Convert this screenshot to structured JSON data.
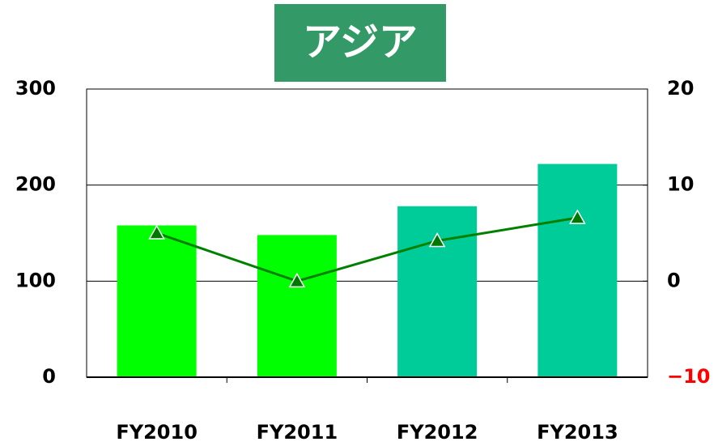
{
  "chart_data": {
    "type": "bar",
    "title": "アジア",
    "categories": [
      "FY2010",
      "FY2011",
      "FY2012",
      "FY2013"
    ],
    "series": [
      {
        "type": "bar",
        "colors": [
          "#00ff00",
          "#00ff00",
          "#00cc99",
          "#00cc99"
        ],
        "values": [
          158,
          148,
          178,
          222
        ]
      },
      {
        "type": "line",
        "axis": "y2",
        "color": "#008000",
        "marker_color": "#007700",
        "values": [
          5.0,
          0,
          4.2,
          6.6
        ]
      }
    ],
    "ylim": [
      0,
      300
    ],
    "yticks": [
      0,
      100,
      200,
      300
    ],
    "y2lim": [
      -10,
      20
    ],
    "y2ticks": [
      {
        "value": -10,
        "label": "−10",
        "color": "#ff0000"
      },
      0,
      10,
      20
    ],
    "grid": true
  }
}
